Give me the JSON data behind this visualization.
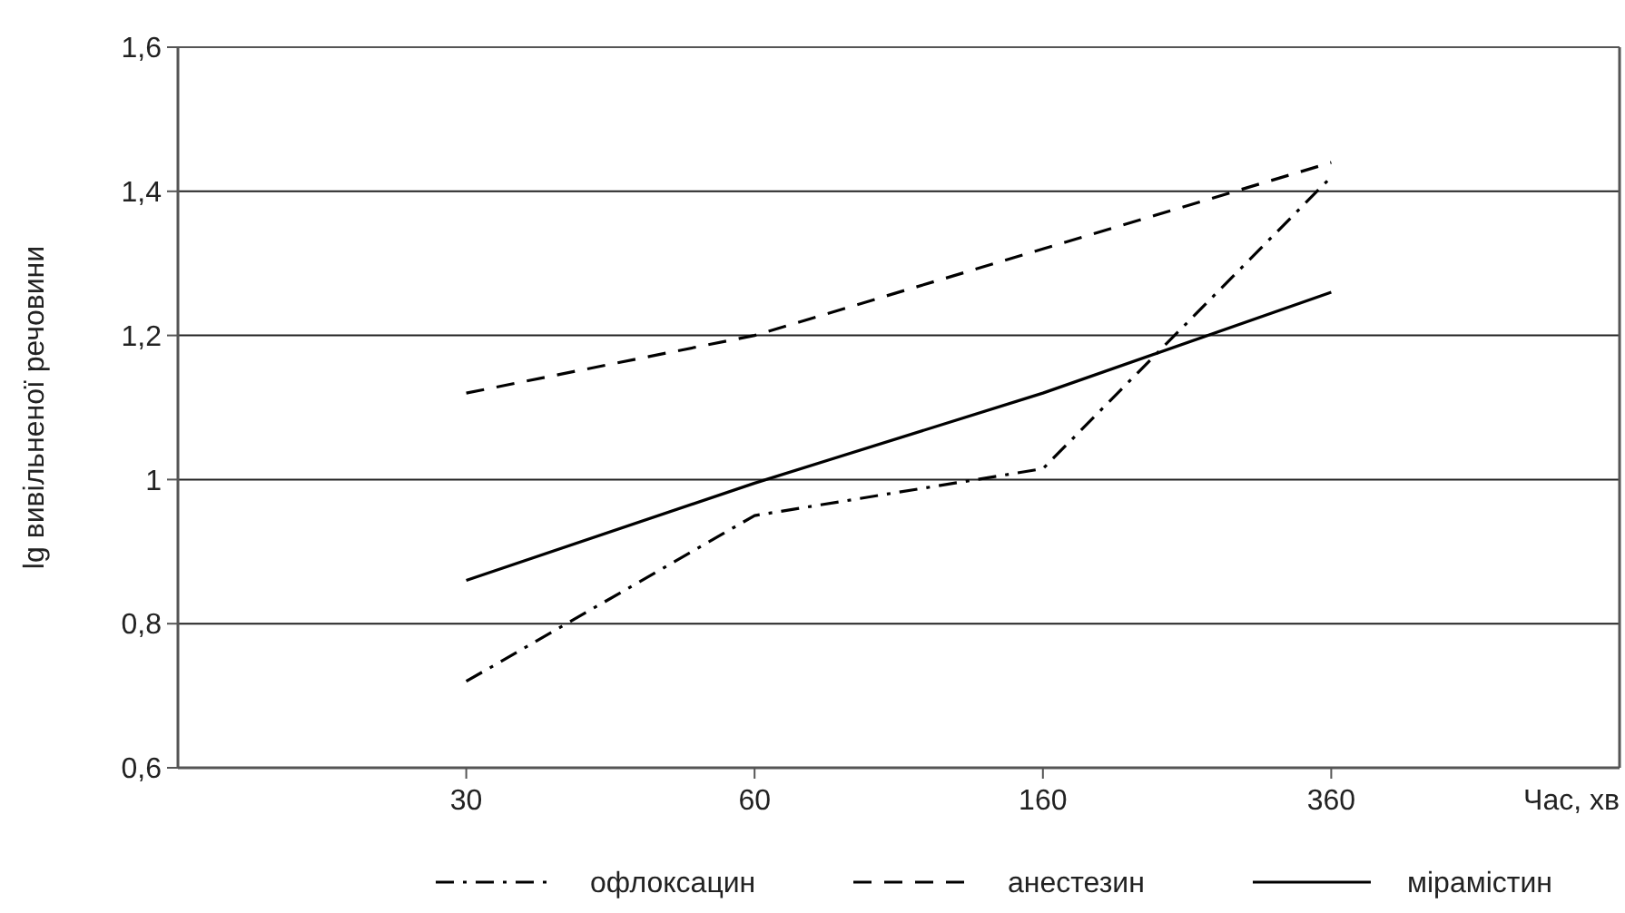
{
  "chart_data": {
    "type": "line",
    "xlabel": "Час, хв",
    "ylabel": "lg вивільненої речовини",
    "categories": [
      "30",
      "60",
      "160",
      "360"
    ],
    "series": [
      {
        "name": "офлоксацин",
        "color": "#000000",
        "line_style": "dashdot",
        "values": [
          0.72,
          0.95,
          1.015,
          1.42
        ]
      },
      {
        "name": "анестезин",
        "color": "#000000",
        "line_style": "dashed",
        "values": [
          1.12,
          1.2,
          1.32,
          1.44
        ]
      },
      {
        "name": "мірамістин",
        "color": "#000000",
        "line_style": "solid",
        "values": [
          0.86,
          0.995,
          1.12,
          1.26
        ]
      }
    ],
    "ylim": [
      0.6,
      1.6
    ],
    "yticks": [
      {
        "value": 0.6,
        "label": "0,6"
      },
      {
        "value": 0.8,
        "label": "0,8"
      },
      {
        "value": 1,
        "label": "1"
      },
      {
        "value": 1.2,
        "label": "1,2"
      },
      {
        "value": 1.4,
        "label": "1,4"
      },
      {
        "value": 1.6,
        "label": "1,6"
      }
    ],
    "grid": "y",
    "legend": "bottom"
  }
}
